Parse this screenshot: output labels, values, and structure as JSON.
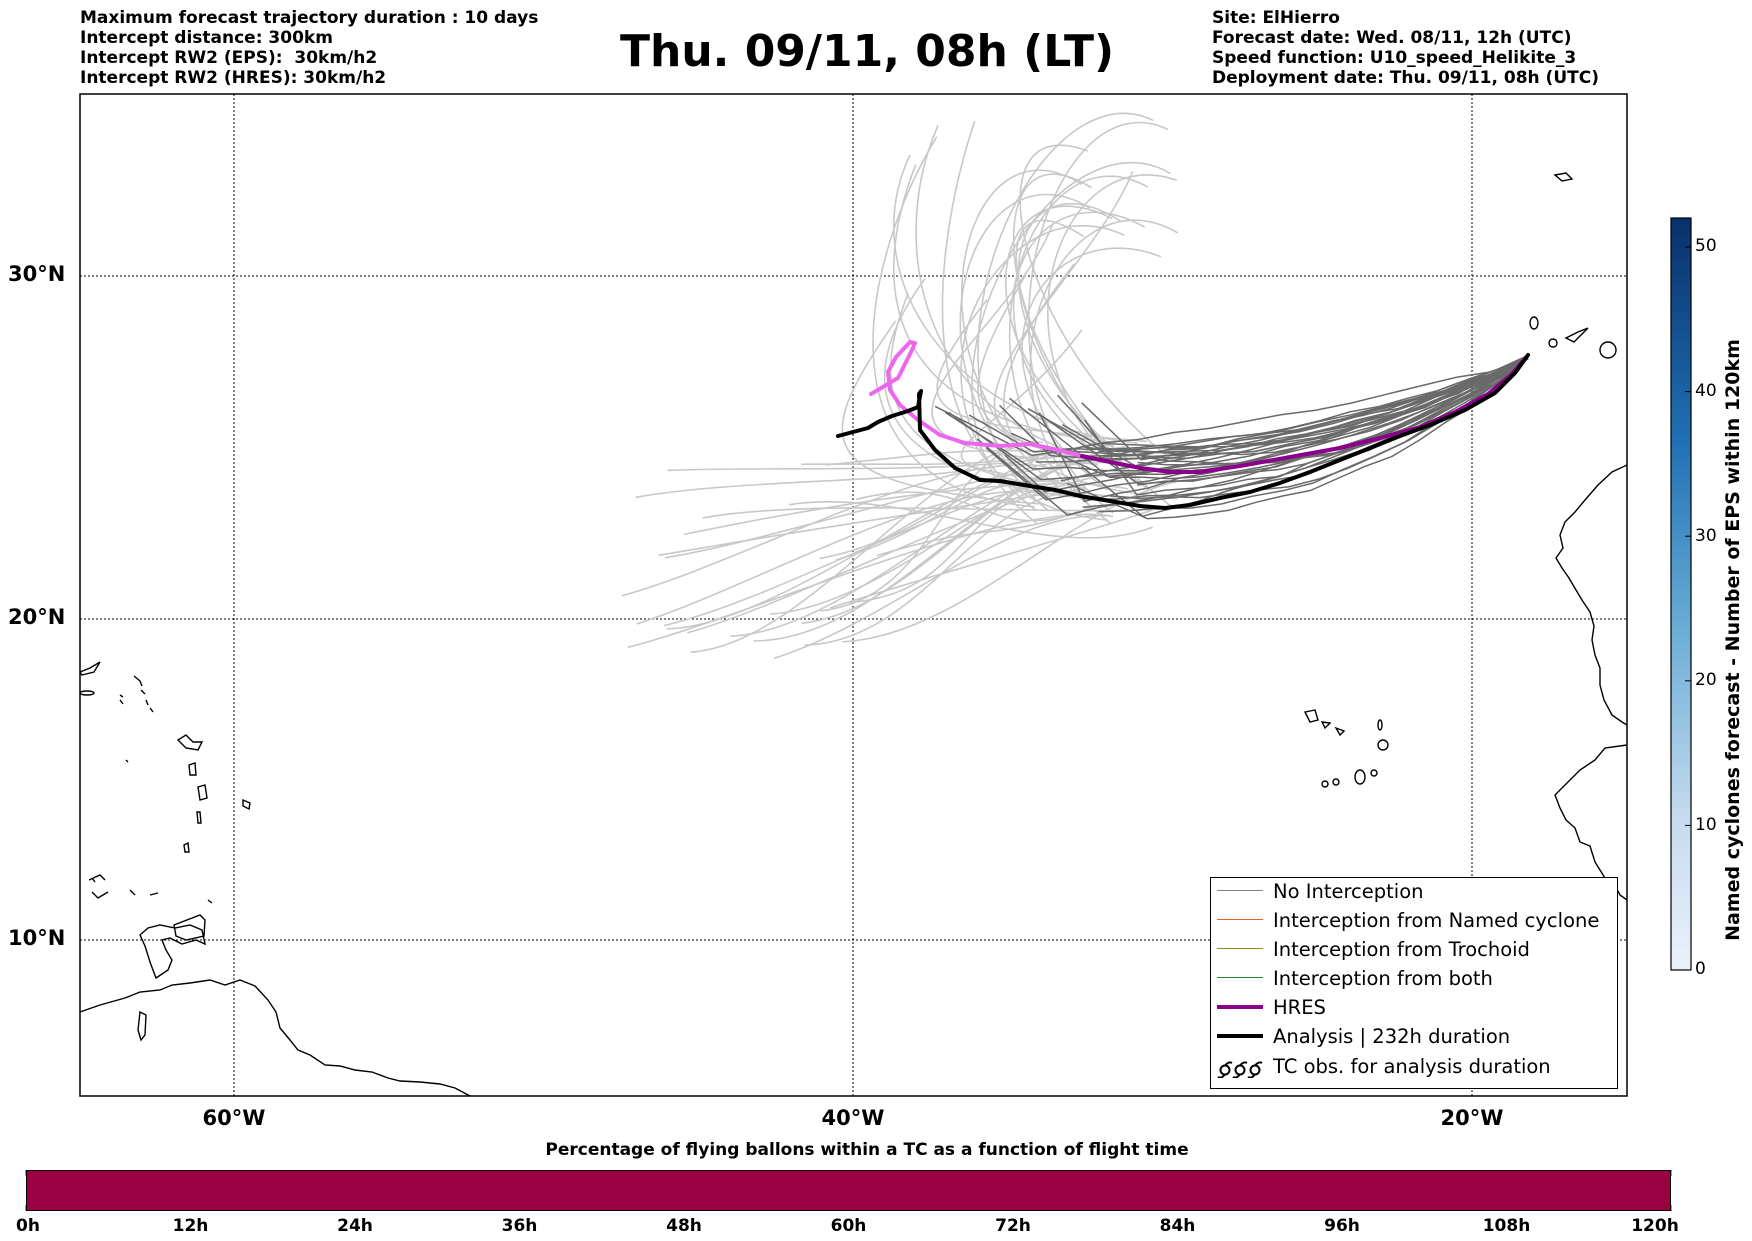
{
  "header": {
    "left_lines": [
      "Maximum forecast trajectory duration : 10 days",
      "Intercept distance: 300km",
      "Intercept RW2 (EPS):  30km/h2",
      "Intercept RW2 (HRES): 30km/h2"
    ],
    "title": "Thu. 09/11, 08h (LT)",
    "right_lines": [
      "Site: ElHierro",
      "Forecast date: Wed. 08/11, 12h (UTC)",
      "Speed function: U10_speed_Helikite_3",
      "Deployment date: Thu. 09/11, 08h (UTC)"
    ]
  },
  "map": {
    "lat_labels": [
      "30°N",
      "20°N",
      "10°N"
    ],
    "lon_labels": [
      "60°W",
      "40°W",
      "20°W"
    ]
  },
  "legend": {
    "items": [
      {
        "label": "No Interception",
        "color": "#808080",
        "style": "thin"
      },
      {
        "label": "Interception from Named cyclone",
        "color": "#e8602c",
        "style": "thin"
      },
      {
        "label": "Interception from Trochoid",
        "color": "#8a8a2a",
        "style": "thin"
      },
      {
        "label": "Interception from both",
        "color": "#2c8a2c",
        "style": "thin"
      },
      {
        "label": "HRES",
        "color": "#8b008b",
        "style": "thick"
      },
      {
        "label": "Analysis | 232h duration",
        "color": "#000000",
        "style": "thick"
      },
      {
        "label": "TC obs. for analysis duration",
        "color": "#000000",
        "style": "symbol"
      }
    ]
  },
  "colorbar": {
    "title": "Named cyclones forecast - Number of EPS within 120km",
    "ticks": [
      "0",
      "10",
      "20",
      "30",
      "40",
      "50"
    ]
  },
  "bottom_bar": {
    "title": "Percentage of flying ballons within a TC as a function of flight time",
    "color": "#9b0043",
    "ticks": [
      "0h",
      "12h",
      "24h",
      "36h",
      "48h",
      "60h",
      "72h",
      "84h",
      "96h",
      "108h",
      "120h"
    ]
  },
  "colors": {
    "ensemble_far": "#c8c8c8",
    "ensemble_near": "#6a6a6a",
    "hres": "#8b008b",
    "hres_early": "#ee66ee",
    "analysis": "#000000"
  }
}
